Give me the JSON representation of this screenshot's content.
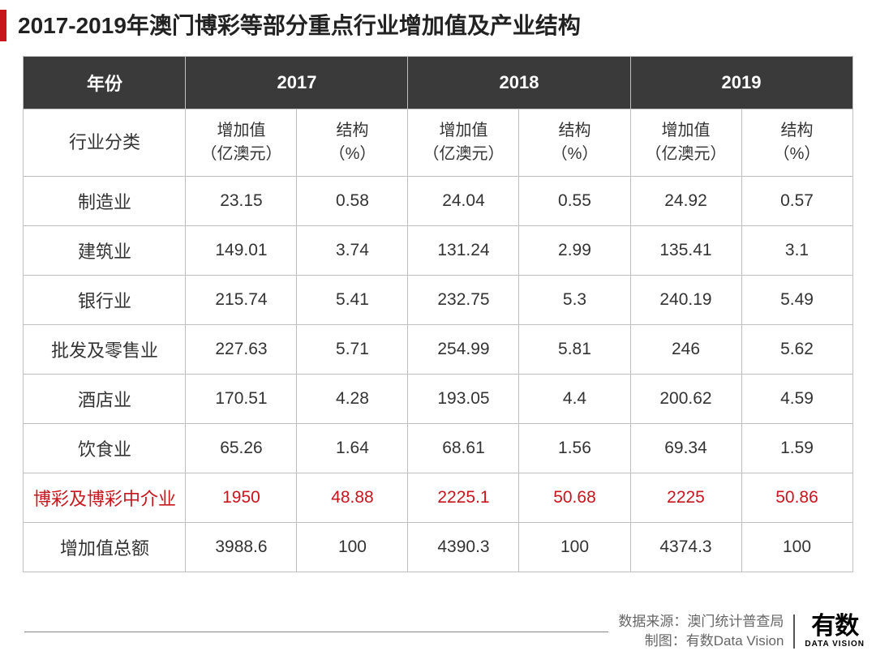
{
  "title": "2017-2019年澳门博彩等部分重点行业增加值及产业结构",
  "table": {
    "header_years": [
      "年份",
      "2017",
      "2018",
      "2019"
    ],
    "subheaders": {
      "category": "行业分类",
      "value_label": "增加值\n（亿澳元）",
      "structure_label": "结构\n（%）"
    },
    "rows": [
      {
        "name": "制造业",
        "cells": [
          "23.15",
          "0.58",
          "24.04",
          "0.55",
          "24.92",
          "0.57"
        ],
        "highlight": false
      },
      {
        "name": "建筑业",
        "cells": [
          "149.01",
          "3.74",
          "131.24",
          "2.99",
          "135.41",
          "3.1"
        ],
        "highlight": false
      },
      {
        "name": "银行业",
        "cells": [
          "215.74",
          "5.41",
          "232.75",
          "5.3",
          "240.19",
          "5.49"
        ],
        "highlight": false
      },
      {
        "name": "批发及零售业",
        "cells": [
          "227.63",
          "5.71",
          "254.99",
          "5.81",
          "246",
          "5.62"
        ],
        "highlight": false
      },
      {
        "name": "酒店业",
        "cells": [
          "170.51",
          "4.28",
          "193.05",
          "4.4",
          "200.62",
          "4.59"
        ],
        "highlight": false
      },
      {
        "name": "饮食业",
        "cells": [
          "65.26",
          "1.64",
          "68.61",
          "1.56",
          "69.34",
          "1.59"
        ],
        "highlight": false
      },
      {
        "name": "博彩及博彩中介业",
        "cells": [
          "1950",
          "48.88",
          "2225.1",
          "50.68",
          "2225",
          "50.86"
        ],
        "highlight": true
      },
      {
        "name": "增加值总额",
        "cells": [
          "3988.6",
          "100",
          "4390.3",
          "100",
          "4374.3",
          "100"
        ],
        "highlight": false
      }
    ]
  },
  "footer": {
    "source_label": "数据来源：",
    "source_value": "澳门统计普查局",
    "chart_label": "制图：",
    "chart_value": "有数Data Vision",
    "logo_main": "有数",
    "logo_sub": "DATA VISION"
  },
  "colors": {
    "accent_red": "#c8161d",
    "header_bg": "#3a3a3a",
    "border": "#bfbfbf",
    "text": "#333333",
    "footer_text": "#666666"
  }
}
